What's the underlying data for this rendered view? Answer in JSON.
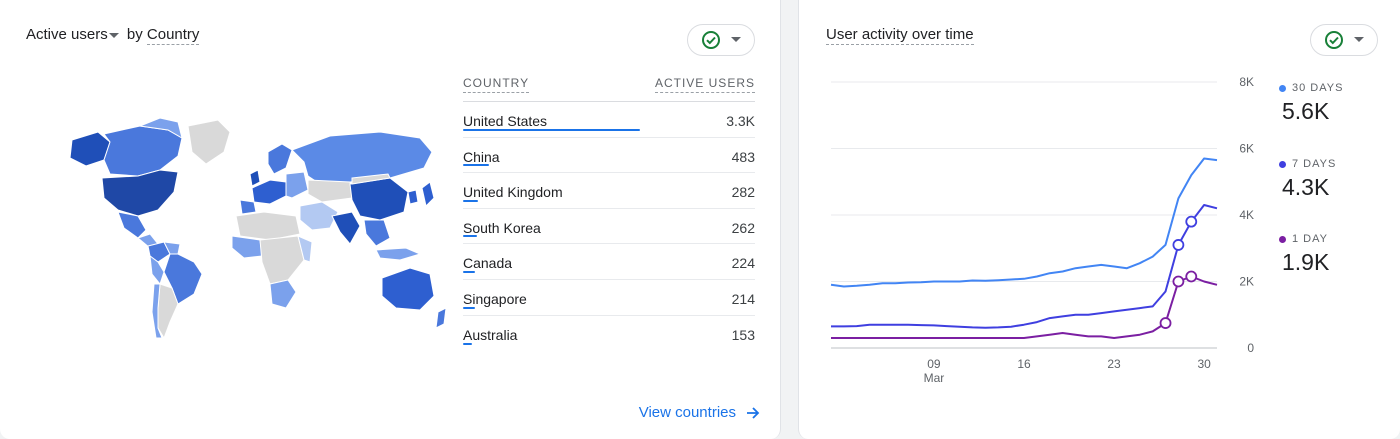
{
  "left_card": {
    "title_metric": "Active users",
    "title_by": "by",
    "title_dimension": "Country",
    "table": {
      "col_country": "COUNTRY",
      "col_users": "ACTIVE USERS",
      "rows": [
        {
          "country": "United States",
          "value": "3.3K",
          "share": 1.0
        },
        {
          "country": "China",
          "value": "483",
          "share": 0.146
        },
        {
          "country": "United Kingdom",
          "value": "282",
          "share": 0.085
        },
        {
          "country": "South Korea",
          "value": "262",
          "share": 0.079
        },
        {
          "country": "Canada",
          "value": "224",
          "share": 0.068
        },
        {
          "country": "Singapore",
          "value": "214",
          "share": 0.065
        },
        {
          "country": "Australia",
          "value": "153",
          "share": 0.046
        }
      ]
    },
    "view_link": "View countries"
  },
  "right_card": {
    "title": "User activity over time",
    "legend": [
      {
        "label": "30 DAYS",
        "value": "5.6K",
        "color": "#4285f4"
      },
      {
        "label": "7 DAYS",
        "value": "4.3K",
        "color": "#3f3fe0"
      },
      {
        "label": "1 DAY",
        "value": "1.9K",
        "color": "#7b1fa2"
      }
    ]
  },
  "chart_data": {
    "type": "line",
    "x": [
      1,
      2,
      3,
      4,
      5,
      6,
      7,
      8,
      9,
      10,
      11,
      12,
      13,
      14,
      15,
      16,
      17,
      18,
      19,
      20,
      21,
      22,
      23,
      24,
      25,
      26,
      27,
      28,
      29,
      30,
      31
    ],
    "x_tick_labels": [
      {
        "x": 9,
        "label": "09",
        "sublabel": "Mar"
      },
      {
        "x": 16,
        "label": "16",
        "sublabel": ""
      },
      {
        "x": 23,
        "label": "23",
        "sublabel": ""
      },
      {
        "x": 30,
        "label": "30",
        "sublabel": ""
      }
    ],
    "y_ticks": [
      "0",
      "2K",
      "4K",
      "6K",
      "8K"
    ],
    "ylim": [
      0,
      8000
    ],
    "series": [
      {
        "name": "30 DAYS",
        "color": "#4285f4",
        "values": [
          1900,
          1850,
          1870,
          1900,
          1950,
          1950,
          1970,
          1980,
          2000,
          2000,
          2000,
          2030,
          2020,
          2040,
          2060,
          2080,
          2150,
          2250,
          2300,
          2400,
          2450,
          2500,
          2450,
          2400,
          2550,
          2750,
          3100,
          4500,
          5200,
          5700,
          5650
        ],
        "markers": []
      },
      {
        "name": "7 DAYS",
        "color": "#3f3fe0",
        "values": [
          650,
          650,
          660,
          700,
          700,
          700,
          700,
          690,
          680,
          660,
          640,
          620,
          610,
          620,
          640,
          700,
          780,
          900,
          950,
          1000,
          1000,
          1050,
          1100,
          1150,
          1200,
          1250,
          1700,
          3100,
          3800,
          4300,
          4200
        ],
        "markers": [
          28,
          29
        ]
      },
      {
        "name": "1 DAY",
        "color": "#7b1fa2",
        "values": [
          300,
          300,
          300,
          300,
          300,
          300,
          300,
          300,
          300,
          300,
          300,
          300,
          300,
          300,
          300,
          300,
          350,
          400,
          450,
          400,
          350,
          350,
          300,
          350,
          400,
          500,
          750,
          2000,
          2150,
          2000,
          1900
        ],
        "markers": [
          27,
          28,
          29
        ]
      }
    ]
  }
}
